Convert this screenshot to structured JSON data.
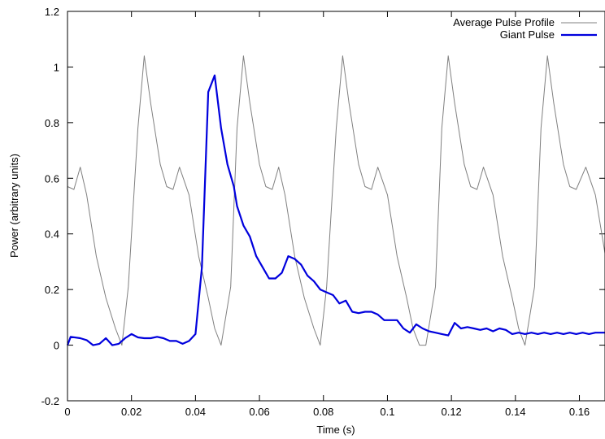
{
  "chart_data": {
    "type": "line",
    "title": "",
    "xlabel": "Time (s)",
    "ylabel": "Power (arbitrary units)",
    "xlim": [
      0,
      0.168
    ],
    "ylim": [
      -0.2,
      1.2
    ],
    "xticks": [
      0,
      0.02,
      0.04,
      0.06,
      0.08,
      0.1,
      0.12,
      0.14,
      0.16
    ],
    "xtick_labels": [
      "0",
      "0.02",
      "0.04",
      "0.06",
      "0.08",
      "0.1",
      "0.12",
      "0.14",
      "0.16"
    ],
    "yticks": [
      -0.2,
      0,
      0.2,
      0.4,
      0.6,
      0.8,
      1,
      1.2
    ],
    "ytick_labels": [
      "-0.2",
      "0",
      "0.2",
      "0.4",
      "0.6",
      "0.8",
      "1",
      "1.2"
    ],
    "grid": false,
    "legend_position": "top-right",
    "series": [
      {
        "name": "Average Pulse Profile",
        "color": "#808080",
        "x": [
          0,
          0.002,
          0.004,
          0.006,
          0.009,
          0.012,
          0.015,
          0.017,
          0.019,
          0.022,
          0.024,
          0.026,
          0.029,
          0.031,
          0.033,
          0.035,
          0.038,
          0.041,
          0.044,
          0.046,
          0.048,
          0.051,
          0.053,
          0.055,
          0.057,
          0.06,
          0.062,
          0.064,
          0.066,
          0.068,
          0.071,
          0.074,
          0.077,
          0.079,
          0.081,
          0.084,
          0.086,
          0.088,
          0.091,
          0.093,
          0.095,
          0.097,
          0.1,
          0.103,
          0.106,
          0.108,
          0.11,
          0.112,
          0.115,
          0.117,
          0.119,
          0.121,
          0.124,
          0.126,
          0.128,
          0.13,
          0.133,
          0.136,
          0.139,
          0.141,
          0.143,
          0.146,
          0.148,
          0.15,
          0.152,
          0.155,
          0.157,
          0.159,
          0.162,
          0.165,
          0.168
        ],
        "values": [
          0.57,
          0.56,
          0.64,
          0.54,
          0.32,
          0.17,
          0.06,
          0.0,
          0.21,
          0.78,
          1.04,
          0.87,
          0.65,
          0.57,
          0.56,
          0.64,
          0.54,
          0.32,
          0.17,
          0.06,
          0.0,
          0.21,
          0.78,
          1.04,
          0.87,
          0.65,
          0.57,
          0.56,
          0.64,
          0.54,
          0.32,
          0.17,
          0.06,
          0.0,
          0.21,
          0.78,
          1.04,
          0.87,
          0.65,
          0.57,
          0.56,
          0.64,
          0.54,
          0.32,
          0.17,
          0.06,
          0.0,
          0.0,
          0.21,
          0.78,
          1.04,
          0.87,
          0.65,
          0.57,
          0.56,
          0.64,
          0.54,
          0.32,
          0.17,
          0.06,
          0.0,
          0.21,
          0.78,
          1.04,
          0.87,
          0.65,
          0.57,
          0.56,
          0.64,
          0.54,
          0.33
        ]
      },
      {
        "name": "Giant Pulse",
        "color": "#0000dd",
        "x": [
          0,
          0.001,
          0.004,
          0.006,
          0.008,
          0.01,
          0.012,
          0.014,
          0.016,
          0.018,
          0.02,
          0.022,
          0.024,
          0.026,
          0.028,
          0.03,
          0.032,
          0.034,
          0.036,
          0.038,
          0.04,
          0.042,
          0.044,
          0.046,
          0.048,
          0.05,
          0.052,
          0.053,
          0.055,
          0.057,
          0.059,
          0.061,
          0.063,
          0.065,
          0.067,
          0.069,
          0.071,
          0.073,
          0.075,
          0.077,
          0.079,
          0.081,
          0.083,
          0.085,
          0.087,
          0.089,
          0.091,
          0.093,
          0.095,
          0.097,
          0.099,
          0.101,
          0.103,
          0.105,
          0.107,
          0.109,
          0.111,
          0.113,
          0.115,
          0.117,
          0.119,
          0.121,
          0.123,
          0.125,
          0.127,
          0.129,
          0.131,
          0.133,
          0.135,
          0.137,
          0.139,
          0.141,
          0.143,
          0.145,
          0.147,
          0.149,
          0.151,
          0.153,
          0.155,
          0.157,
          0.159,
          0.161,
          0.163,
          0.165,
          0.168
        ],
        "values": [
          0.0,
          0.03,
          0.025,
          0.018,
          0.0,
          0.005,
          0.025,
          0.0,
          0.005,
          0.025,
          0.04,
          0.028,
          0.025,
          0.025,
          0.03,
          0.025,
          0.015,
          0.015,
          0.005,
          0.015,
          0.04,
          0.28,
          0.91,
          0.97,
          0.78,
          0.65,
          0.57,
          0.5,
          0.43,
          0.39,
          0.32,
          0.28,
          0.24,
          0.24,
          0.26,
          0.32,
          0.31,
          0.29,
          0.25,
          0.23,
          0.2,
          0.19,
          0.18,
          0.15,
          0.16,
          0.12,
          0.115,
          0.12,
          0.12,
          0.11,
          0.09,
          0.09,
          0.09,
          0.06,
          0.045,
          0.075,
          0.06,
          0.05,
          0.045,
          0.04,
          0.035,
          0.08,
          0.06,
          0.065,
          0.06,
          0.055,
          0.06,
          0.05,
          0.06,
          0.055,
          0.04,
          0.045,
          0.04,
          0.045,
          0.04,
          0.045,
          0.04,
          0.045,
          0.04,
          0.045,
          0.04,
          0.045,
          0.04,
          0.045,
          0.045
        ]
      }
    ]
  }
}
